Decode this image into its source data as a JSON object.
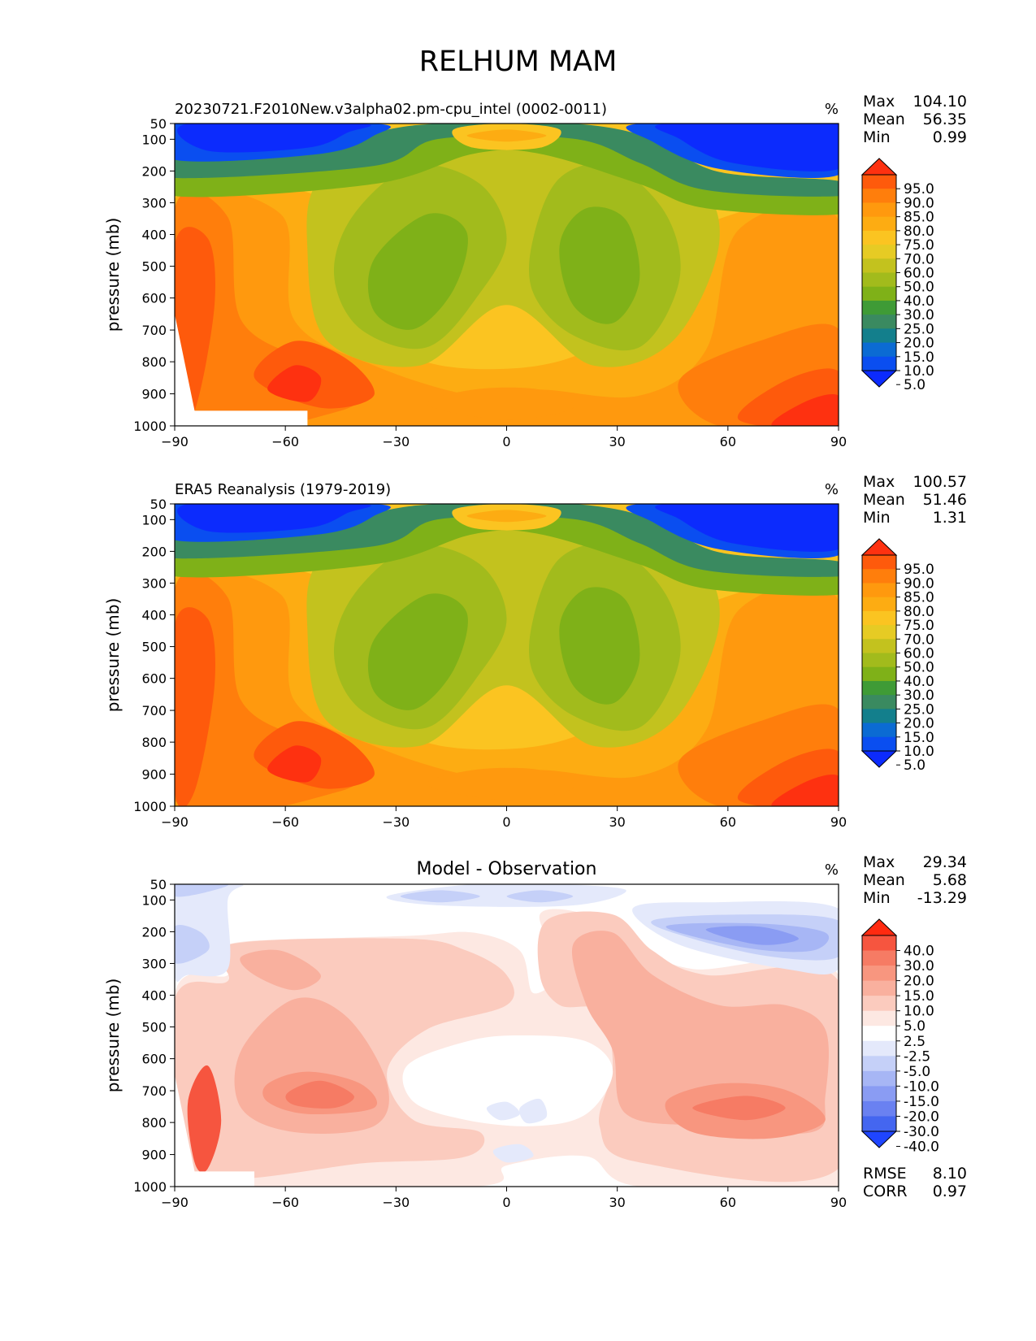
{
  "figure_title": "RELHUM MAM",
  "chart_data": [
    {
      "type": "heatmap",
      "title": "20230721.F2010New.v3alpha02.pm-cpu_intel (0002-0011)",
      "units": "%",
      "xlabel": "",
      "ylabel": "pressure (mb)",
      "xticks": [
        "−90",
        "−60",
        "−30",
        "0",
        "30",
        "60",
        "90"
      ],
      "yticks": [
        "50",
        "100",
        "200",
        "300",
        "400",
        "500",
        "600",
        "700",
        "800",
        "900",
        "1000"
      ],
      "xlim": [
        -90,
        90
      ],
      "ylim": [
        50,
        1000
      ],
      "stats": [
        {
          "label": "Max",
          "value": "104.10"
        },
        {
          "label": "Mean",
          "value": "56.35"
        },
        {
          "label": "Min",
          "value": "0.99"
        }
      ],
      "colorbar": {
        "levels": [
          "95.0",
          "90.0",
          "85.0",
          "80.0",
          "75.0",
          "70.0",
          "60.0",
          "50.0",
          "40.0",
          "30.0",
          "25.0",
          "20.0",
          "15.0",
          "10.0",
          "5.0"
        ],
        "colors": [
          "#fe3110",
          "#fe5a0c",
          "#ff7e0c",
          "#ff990e",
          "#fdac12",
          "#fbc421",
          "#e6cb24",
          "#c3c21e",
          "#a2bb1c",
          "#7fb118",
          "#3f9b36",
          "#3a8a60",
          "#137f8c",
          "#0b6bd3",
          "#0a4ef0",
          "#0c2bfd"
        ]
      },
      "annotations": []
    },
    {
      "type": "heatmap",
      "title": "ERA5 Reanalysis (1979-2019)",
      "units": "%",
      "xlabel": "",
      "ylabel": "pressure (mb)",
      "xticks": [
        "−90",
        "−60",
        "−30",
        "0",
        "30",
        "60",
        "90"
      ],
      "yticks": [
        "50",
        "100",
        "200",
        "300",
        "400",
        "500",
        "600",
        "700",
        "800",
        "900",
        "1000"
      ],
      "xlim": [
        -90,
        90
      ],
      "ylim": [
        50,
        1000
      ],
      "stats": [
        {
          "label": "Max",
          "value": "100.57"
        },
        {
          "label": "Mean",
          "value": "51.46"
        },
        {
          "label": "Min",
          "value": "1.31"
        }
      ],
      "colorbar": {
        "levels": [
          "95.0",
          "90.0",
          "85.0",
          "80.0",
          "75.0",
          "70.0",
          "60.0",
          "50.0",
          "40.0",
          "30.0",
          "25.0",
          "20.0",
          "15.0",
          "10.0",
          "5.0"
        ],
        "colors": [
          "#fe3110",
          "#fe5a0c",
          "#ff7e0c",
          "#ff990e",
          "#fdac12",
          "#fbc421",
          "#e6cb24",
          "#c3c21e",
          "#a2bb1c",
          "#7fb118",
          "#3f9b36",
          "#3a8a60",
          "#137f8c",
          "#0b6bd3",
          "#0a4ef0",
          "#0c2bfd"
        ]
      },
      "annotations": []
    },
    {
      "type": "heatmap",
      "title": "Model - Observation",
      "units": "%",
      "xlabel": "",
      "ylabel": "pressure (mb)",
      "xticks": [
        "−90",
        "−60",
        "−30",
        "0",
        "30",
        "60",
        "90"
      ],
      "yticks": [
        "50",
        "100",
        "200",
        "300",
        "400",
        "500",
        "600",
        "700",
        "800",
        "900",
        "1000"
      ],
      "xlim": [
        -90,
        90
      ],
      "ylim": [
        50,
        1000
      ],
      "stats": [
        {
          "label": "Max",
          "value": "29.34"
        },
        {
          "label": "Mean",
          "value": "5.68"
        },
        {
          "label": "Min",
          "value": "-13.29"
        }
      ],
      "colorbar": {
        "levels": [
          "40.0",
          "30.0",
          "20.0",
          "15.0",
          "10.0",
          "5.0",
          "2.5",
          "-2.5",
          "-5.0",
          "-10.0",
          "-15.0",
          "-20.0",
          "-30.0",
          "-40.0"
        ],
        "colors": [
          "#ff2a10",
          "#f6553f",
          "#f67b64",
          "#f8967f",
          "#f9b09e",
          "#fbcbbe",
          "#fde8e2",
          "#ffffff",
          "#e4e9fb",
          "#c5d0f8",
          "#a7b6f5",
          "#8a9cf3",
          "#6a81f1",
          "#4466f0",
          "#1f45ff"
        ]
      },
      "annotations": [
        {
          "label": "RMSE",
          "value": "8.10"
        },
        {
          "label": "CORR",
          "value": "0.97"
        }
      ]
    }
  ]
}
